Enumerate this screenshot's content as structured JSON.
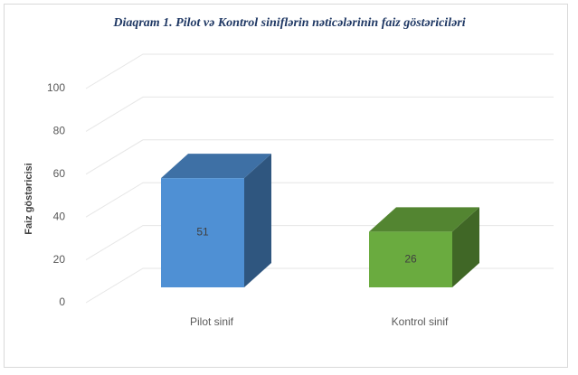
{
  "chart_data": {
    "type": "bar3d",
    "title": "Diaqram 1. Pilot və Kontrol siniflərin nəticələrinin faiz göstəriciləri",
    "y_label": "Faiz göstəricisi",
    "categories": [
      "Pilot sinif",
      "Kontrol sinif"
    ],
    "values": [
      51,
      26
    ],
    "colors": [
      "#4f90d4",
      "#6aab3f"
    ],
    "ylim": [
      0,
      100
    ],
    "yticks": [
      0,
      20,
      40,
      60,
      80,
      100
    ],
    "grid": true
  }
}
